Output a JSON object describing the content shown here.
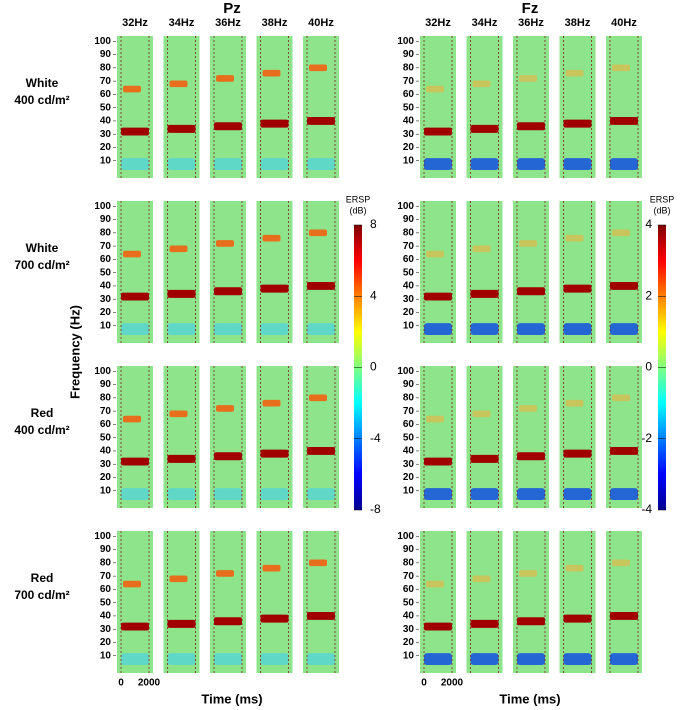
{
  "chart_data": [
    {
      "type": "heatmap",
      "title": "Pz",
      "columns": [
        "32Hz",
        "34Hz",
        "36Hz",
        "38Hz",
        "40Hz"
      ],
      "rows": [
        [
          "White",
          "400 cd/m²"
        ],
        [
          "White",
          "700 cd/m²"
        ],
        [
          "Red",
          "400 cd/m²"
        ],
        [
          "Red",
          "700 cd/m²"
        ]
      ],
      "ylim": [
        -3,
        104
      ],
      "yticks": [
        10,
        20,
        30,
        40,
        50,
        60,
        70,
        80,
        90,
        100
      ],
      "ylabel": "Frequency (Hz)",
      "xticks": [
        "0",
        "2000"
      ],
      "xlabel": "Time (ms)",
      "colorbar": {
        "label": [
          "ERSP",
          "(dB)"
        ],
        "lim": [
          -8,
          8
        ],
        "ticks": [
          -8,
          -4,
          0,
          4,
          8
        ]
      }
    },
    {
      "type": "heatmap",
      "title": "Fz",
      "columns": [
        "32Hz",
        "34Hz",
        "36Hz",
        "38Hz",
        "40Hz"
      ],
      "ylim": [
        -3,
        104
      ],
      "yticks": [
        10,
        20,
        30,
        40,
        50,
        60,
        70,
        80,
        90,
        100
      ],
      "xticks": [
        "0",
        "2000"
      ],
      "xlabel": "Time (ms)",
      "colorbar": {
        "label": [
          "ERSP",
          "(dB)"
        ],
        "lim": [
          -4,
          4
        ],
        "ticks": [
          -4,
          -2,
          0,
          2,
          4
        ]
      }
    }
  ]
}
